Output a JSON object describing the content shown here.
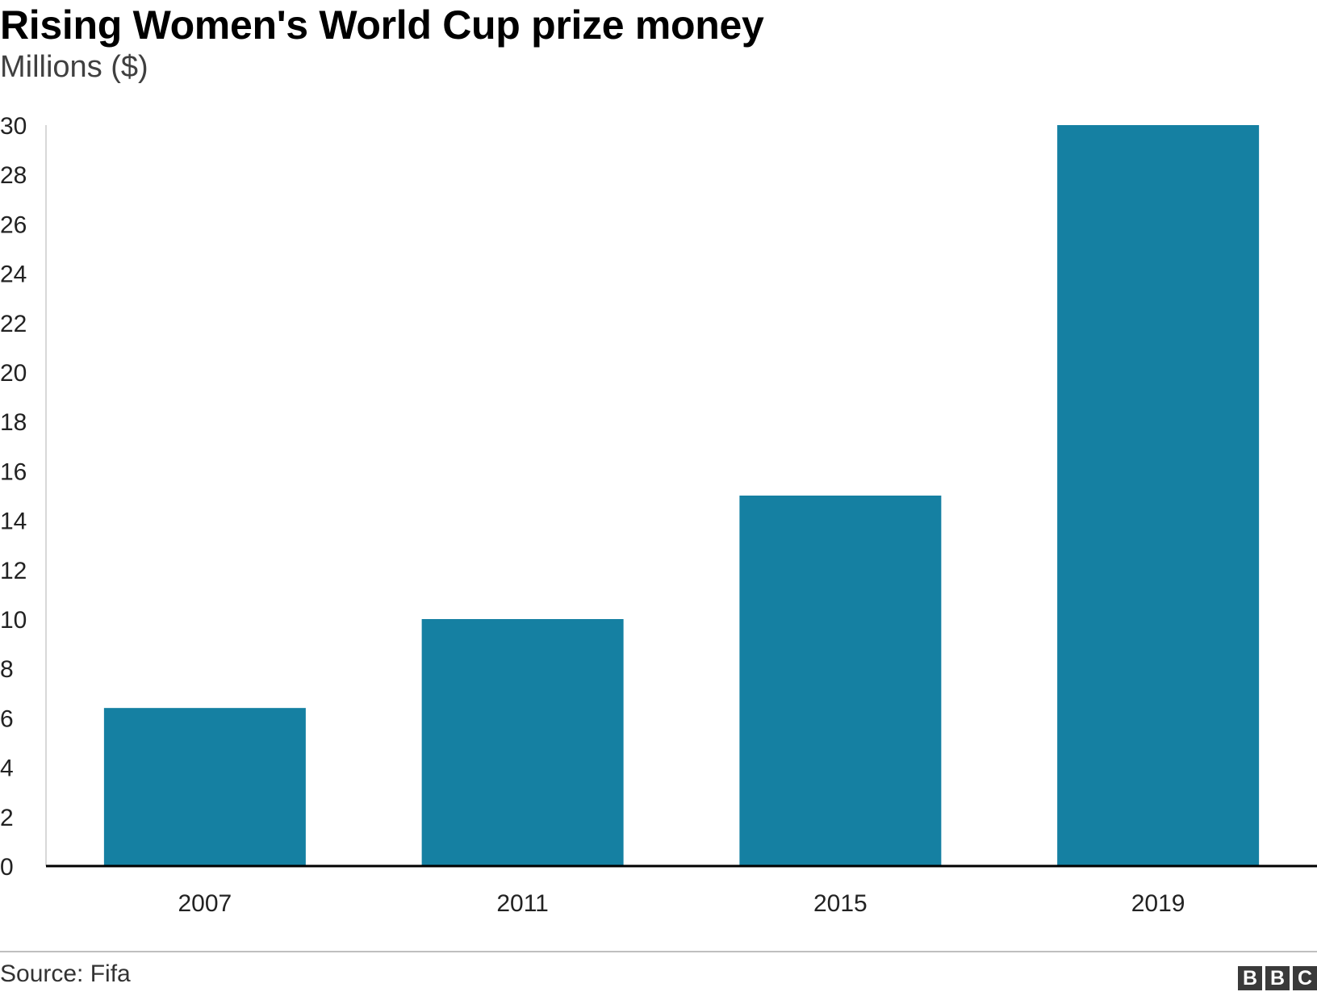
{
  "chart_data": {
    "type": "bar",
    "title": "Rising Women's World Cup prize money",
    "subtitle": "Millions ($)",
    "categories": [
      "2007",
      "2011",
      "2015",
      "2019"
    ],
    "values": [
      6.4,
      10,
      15,
      30
    ],
    "ylim": [
      0,
      30
    ],
    "yticks": [
      0,
      2,
      4,
      6,
      8,
      10,
      12,
      14,
      16,
      18,
      20,
      22,
      24,
      26,
      28,
      30
    ],
    "grid": false,
    "legend": "none",
    "bar_color": "#1580a2"
  },
  "footer": {
    "source": "Source: Fifa",
    "logo_text": "BBC"
  }
}
